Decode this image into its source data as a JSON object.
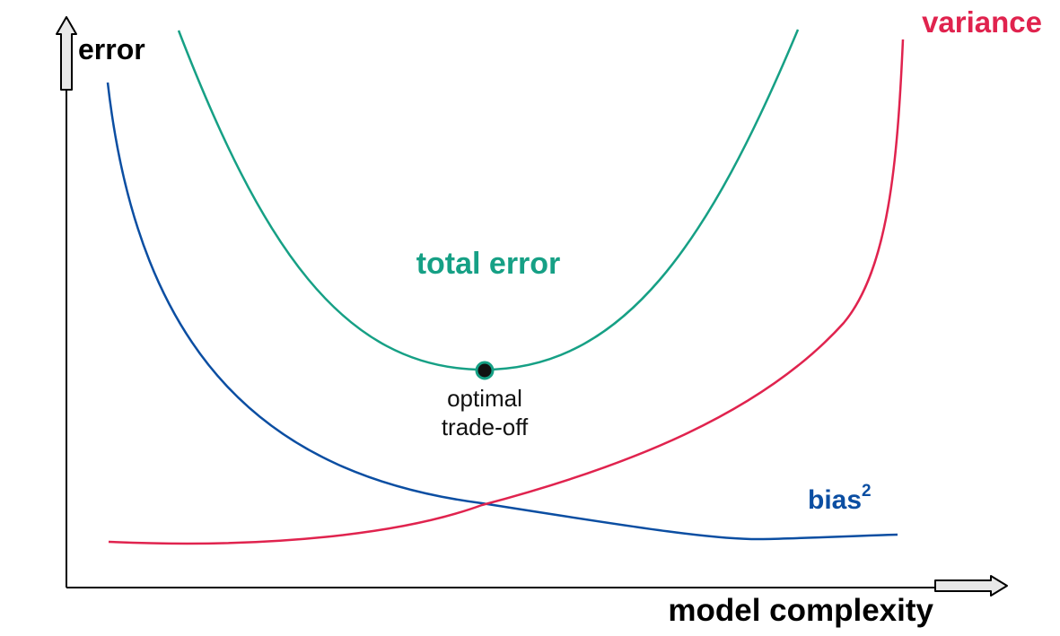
{
  "axes": {
    "y_label": "error",
    "x_label": "model complexity"
  },
  "curves": {
    "total_error": {
      "label": "total error",
      "color": "#16A085"
    },
    "variance": {
      "label": "variance",
      "color": "#E0234E"
    },
    "bias": {
      "label": "bias",
      "superscript": "2",
      "color": "#0B4EA2"
    }
  },
  "annotation": {
    "line1": "optimal",
    "line2": "trade-off"
  },
  "colors": {
    "axis": "#000000",
    "marker_fill": "#111111"
  }
}
